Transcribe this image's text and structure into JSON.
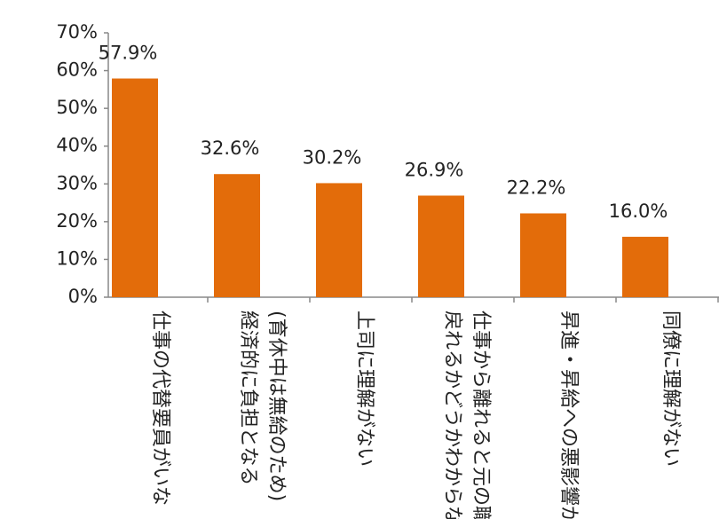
{
  "chart_data": {
    "type": "bar",
    "categories": [
      [
        "仕事の代替要員がいな"
      ],
      [
        "(育休中は無給のため)",
        "経済的に負担となる"
      ],
      [
        "上司に理解がない"
      ],
      [
        "仕事から離れると元の職場",
        "戻れるかどうかわからない"
      ],
      [
        "昇進・昇給への悪影響があ"
      ],
      [
        "同僚に理解がない"
      ]
    ],
    "values": [
      57.9,
      32.6,
      30.2,
      26.9,
      22.2,
      16.0
    ],
    "value_labels": [
      "57.9%",
      "32.6%",
      "30.2%",
      "26.9%",
      "22.2%",
      "16.0%"
    ],
    "color": "#e36c0a",
    "ylim": [
      0,
      70
    ],
    "yticks": [
      {
        "value": 0,
        "label": "0%"
      },
      {
        "value": 10,
        "label": "10%"
      },
      {
        "value": 20,
        "label": "20%"
      },
      {
        "value": 30,
        "label": "30%"
      },
      {
        "value": 40,
        "label": "40%"
      },
      {
        "value": 50,
        "label": "50%"
      },
      {
        "value": 60,
        "label": "60%"
      },
      {
        "value": 70,
        "label": "70%"
      }
    ],
    "grid": false
  }
}
